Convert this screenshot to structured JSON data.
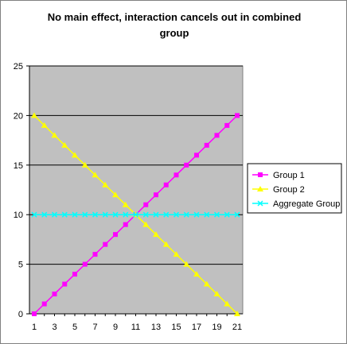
{
  "chart_data": {
    "type": "line",
    "title_line1": "No main effect, interaction cancels out in combined",
    "title_line2": "group",
    "xlabel": "",
    "ylabel": "",
    "x": [
      1,
      2,
      3,
      4,
      5,
      6,
      7,
      8,
      9,
      10,
      11,
      12,
      13,
      14,
      15,
      16,
      17,
      18,
      19,
      20,
      21
    ],
    "x_tick_labels": [
      "1",
      "3",
      "5",
      "7",
      "9",
      "11",
      "13",
      "15",
      "17",
      "19",
      "21"
    ],
    "ylim": [
      0,
      25
    ],
    "y_ticks": [
      0,
      5,
      10,
      15,
      20,
      25
    ],
    "y_tick_labels": [
      "0",
      "5",
      "10",
      "15",
      "20",
      "25"
    ],
    "grid": "horizontal major gridlines",
    "plot_background": "#C0C0C0",
    "legend_position": "right",
    "series": [
      {
        "name": "Group 1",
        "color": "#FF00FF",
        "marker": "square",
        "values": [
          0,
          1,
          2,
          3,
          4,
          5,
          6,
          7,
          8,
          9,
          10,
          11,
          12,
          13,
          14,
          15,
          16,
          17,
          18,
          19,
          20
        ]
      },
      {
        "name": "Group 2",
        "color": "#FFFF00",
        "marker": "triangle",
        "values": [
          20,
          19,
          18,
          17,
          16,
          15,
          14,
          13,
          12,
          11,
          10,
          9,
          8,
          7,
          6,
          5,
          4,
          3,
          2,
          1,
          0
        ]
      },
      {
        "name": "Aggregate Group",
        "color": "#00FFFF",
        "marker": "x",
        "values": [
          10,
          10,
          10,
          10,
          10,
          10,
          10,
          10,
          10,
          10,
          10,
          10,
          10,
          10,
          10,
          10,
          10,
          10,
          10,
          10,
          10
        ]
      }
    ]
  }
}
